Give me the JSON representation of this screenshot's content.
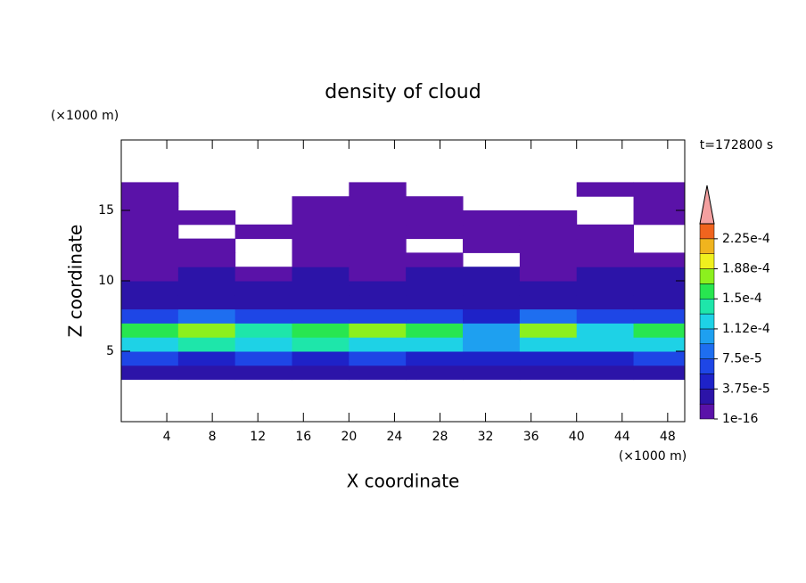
{
  "chart_data": {
    "type": "contour",
    "title": "density of cloud",
    "time_label": "t=172800 s",
    "xlabel": "X coordinate",
    "ylabel": "Z coordinate",
    "x_unit": "(×1000 m)",
    "y_unit": "(×1000 m)",
    "xlim": [
      0,
      49.5
    ],
    "ylim": [
      0,
      20
    ],
    "xticks": [
      4,
      8,
      12,
      16,
      20,
      24,
      28,
      32,
      36,
      40,
      44,
      48
    ],
    "yticks": [
      5,
      10,
      15
    ],
    "x": [
      2.5,
      7.5,
      12.5,
      17.5,
      22.5,
      27.5,
      32.5,
      37.5,
      42.5,
      47.5
    ],
    "y": [
      3.5,
      4.5,
      5.5,
      6.5,
      7.5,
      8.5,
      9.5,
      10.5,
      11.5,
      12.5,
      13.5,
      14.5,
      15.5,
      16.5
    ],
    "z": [
      [
        2e-05,
        2e-05,
        2e-05,
        2e-05,
        2e-05,
        2e-05,
        2e-05,
        2e-05,
        2e-05,
        2e-05
      ],
      [
        6e-05,
        5e-05,
        6e-05,
        5e-05,
        6e-05,
        5e-05,
        4e-05,
        5e-05,
        5e-05,
        6e-05
      ],
      [
        0.00013,
        0.00014,
        0.00012,
        0.00014,
        0.00013,
        0.00012,
        0.0001,
        0.00013,
        0.00012,
        0.00013
      ],
      [
        0.00016,
        0.00018,
        0.00014,
        0.00015,
        0.00018,
        0.00016,
        0.00011,
        0.00017,
        0.00012,
        0.00015
      ],
      [
        7e-05,
        8e-05,
        6e-05,
        6e-05,
        7e-05,
        6e-05,
        5e-05,
        8e-05,
        6e-05,
        6e-05
      ],
      [
        3e-05,
        3.5e-05,
        3e-05,
        3e-05,
        3e-05,
        3e-05,
        3e-05,
        3.5e-05,
        3e-05,
        3e-05
      ],
      [
        2.5e-05,
        2.5e-05,
        2e-05,
        2.5e-05,
        2e-05,
        2.5e-05,
        2e-05,
        2.5e-05,
        2.5e-05,
        2.5e-05
      ],
      [
        1.5e-05,
        2e-05,
        1.5e-05,
        2e-05,
        1.5e-05,
        2e-05,
        2e-05,
        1.5e-05,
        2e-05,
        2e-05
      ],
      [
        1e-05,
        1e-05,
        null,
        1e-05,
        1e-05,
        1e-05,
        null,
        1e-05,
        1e-05,
        1e-05
      ],
      [
        5e-06,
        5e-06,
        null,
        5e-06,
        5e-06,
        null,
        5e-06,
        5e-06,
        5e-06,
        null
      ],
      [
        3e-06,
        null,
        3e-06,
        3e-06,
        3e-06,
        3e-06,
        3e-06,
        3e-06,
        3e-06,
        null
      ],
      [
        2e-06,
        2e-06,
        null,
        2e-06,
        2e-06,
        2e-06,
        2e-06,
        2e-06,
        null,
        2e-06
      ],
      [
        1e-06,
        null,
        null,
        1e-06,
        1e-06,
        1e-06,
        null,
        null,
        null,
        1e-06
      ],
      [
        1e-06,
        null,
        null,
        null,
        1e-06,
        null,
        null,
        null,
        1e-06,
        1e-06
      ]
    ],
    "levels": [
      1e-16,
      1.875e-05,
      3.75e-05,
      5.625e-05,
      7.5e-05,
      9.375e-05,
      0.0001125,
      0.00013125,
      0.00015,
      0.00016875,
      0.0001875,
      0.00020625,
      0.000225,
      0.00024375
    ],
    "colors": [
      "#5a12a8",
      "#2c14a8",
      "#1e22c8",
      "#1e46e6",
      "#1e6ef0",
      "#1ea0f0",
      "#1ed2e6",
      "#1ee6aa",
      "#28e650",
      "#8cf01e",
      "#f0f01e",
      "#f0b41e",
      "#f0641e",
      "#f4a0a0"
    ],
    "colorbar_ticks": [
      1e-16,
      {
        "value": 3.75e-05,
        "label": "3.75e-5"
      },
      {
        "value": 7.5e-05,
        "label": "7.5e-5"
      },
      {
        "value": 0.0001125,
        "label": "1.12e-4"
      },
      {
        "value": 0.00015,
        "label": "1.5e-4"
      },
      {
        "value": 0.0001875,
        "label": "1.88e-4"
      },
      {
        "value": 0.000225,
        "label": "2.25e-4"
      }
    ]
  }
}
